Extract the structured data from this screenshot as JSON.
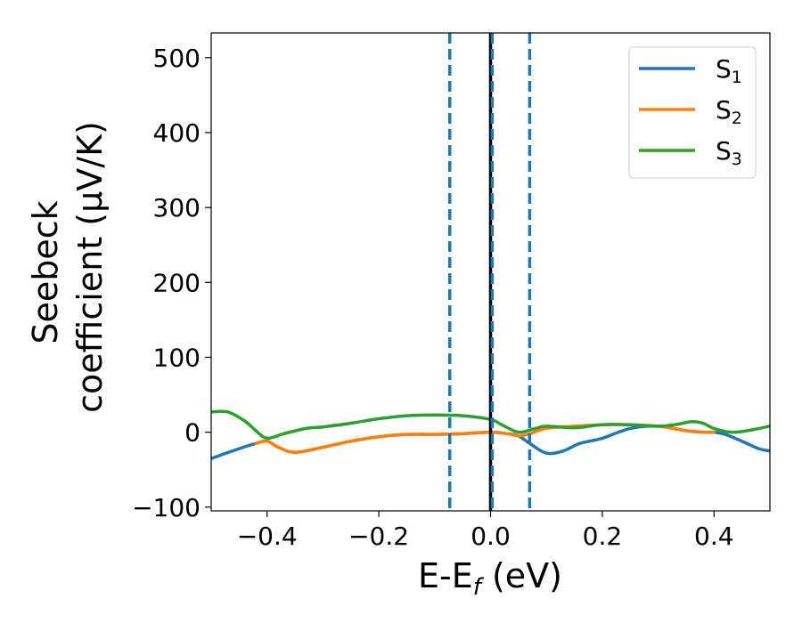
{
  "chart_data": {
    "type": "line",
    "xlabel": "E-E",
    "xlabel_sub": "f",
    "xlabel_unit": " (eV)",
    "ylabel_line1": "Seebeck",
    "ylabel_line2": "coefficient  (μV/K)",
    "xlim": [
      -0.5,
      0.5
    ],
    "ylim": [
      -105,
      533
    ],
    "xticks": [
      -0.4,
      -0.2,
      0.0,
      0.2,
      0.4
    ],
    "xtick_labels": [
      "−0.4",
      "−0.2",
      "0.0",
      "0.2",
      "0.4"
    ],
    "yticks": [
      -100,
      0,
      100,
      200,
      300,
      400,
      500
    ],
    "ytick_labels": [
      "−100",
      "0",
      "100",
      "200",
      "300",
      "400",
      "500"
    ],
    "grid": false,
    "legend_position": "top-right",
    "series": [
      {
        "name": "S",
        "sub": "1",
        "color": "#1f77b4",
        "x": [
          -0.5,
          -0.45,
          -0.42,
          -0.4,
          -0.38,
          -0.35,
          -0.3,
          -0.25,
          -0.2,
          -0.15,
          -0.1,
          -0.05,
          0.0,
          0.03,
          0.05,
          0.07,
          0.1,
          0.13,
          0.16,
          0.2,
          0.25,
          0.3,
          0.35,
          0.38,
          0.4,
          0.42,
          0.45,
          0.48,
          0.5
        ],
        "y": [
          -35,
          -22,
          -15,
          -12,
          -20,
          -27,
          -20,
          -12,
          -6,
          -3,
          -3,
          -2,
          0,
          -2,
          -5,
          -15,
          -28,
          -25,
          -15,
          -8,
          5,
          8,
          2,
          0,
          0,
          -3,
          -12,
          -22,
          -25
        ]
      },
      {
        "name": "S",
        "sub": "2",
        "color": "#ff7f0e",
        "x": [
          -0.42,
          -0.4,
          -0.38,
          -0.35,
          -0.3,
          -0.25,
          -0.2,
          -0.15,
          -0.1,
          -0.05,
          0.0,
          0.03,
          0.05,
          0.07,
          0.1,
          0.15,
          0.2,
          0.25,
          0.3,
          0.35,
          0.38,
          0.4
        ],
        "y": [
          -15,
          -12,
          -20,
          -27,
          -20,
          -12,
          -6,
          -3,
          -3,
          -2,
          0,
          -2,
          -5,
          -2,
          5,
          8,
          10,
          10,
          8,
          2,
          0,
          0
        ]
      },
      {
        "name": "S",
        "sub": "3",
        "color": "#2ca02c",
        "x": [
          -0.5,
          -0.47,
          -0.44,
          -0.42,
          -0.4,
          -0.37,
          -0.33,
          -0.3,
          -0.25,
          -0.2,
          -0.15,
          -0.1,
          -0.05,
          0.0,
          0.02,
          0.05,
          0.08,
          0.1,
          0.15,
          0.2,
          0.25,
          0.3,
          0.33,
          0.36,
          0.38,
          0.4,
          0.43,
          0.46,
          0.5
        ],
        "y": [
          27,
          27,
          15,
          2,
          -8,
          -2,
          5,
          7,
          12,
          18,
          22,
          23,
          22,
          17,
          10,
          0,
          5,
          8,
          6,
          10,
          10,
          8,
          10,
          14,
          12,
          5,
          0,
          2,
          8
        ]
      }
    ],
    "vlines": [
      {
        "x": 0.0,
        "color": "#000000",
        "dashed": false
      },
      {
        "x": -0.073,
        "color": "#1f77b4",
        "dashed": true
      },
      {
        "x": 0.003,
        "color": "#1f77b4",
        "dashed": true
      },
      {
        "x": 0.07,
        "color": "#1f77b4",
        "dashed": true
      }
    ]
  }
}
